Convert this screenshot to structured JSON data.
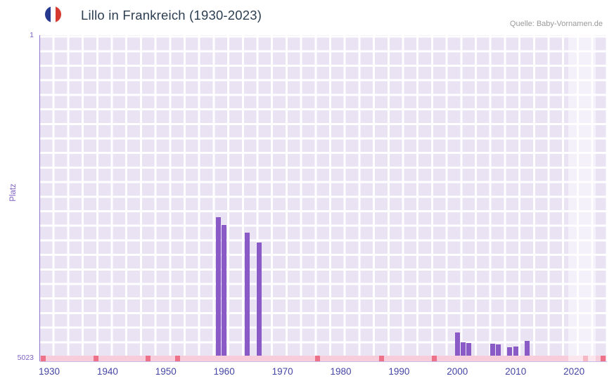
{
  "header": {
    "title": "Lillo in Frankreich (1930-2023)",
    "source": "Quelle: Baby-Vornamen.de",
    "flag_icon": "france-flag-icon"
  },
  "axis": {
    "y_label": "Platz",
    "y_top_tick": "1",
    "y_bottom_tick": "5023",
    "x_ticks": [
      "1930",
      "1940",
      "1950",
      "1960",
      "1970",
      "1980",
      "1990",
      "2000",
      "2010",
      "2020"
    ]
  },
  "chart_data": {
    "type": "bar",
    "title": "Lillo in Frankreich (1930-2023)",
    "xlabel": "",
    "ylabel": "Platz",
    "y_axis": {
      "min": 1,
      "max": 5023,
      "inverted": true,
      "shown_ticks": [
        1,
        5023
      ]
    },
    "x_axis": {
      "min": 1929,
      "max": 2027,
      "shown_ticks": [
        1930,
        1940,
        1950,
        1960,
        1970,
        1980,
        1990,
        2000,
        2010,
        2020
      ]
    },
    "series": [
      {
        "name": "Platz von Lillo",
        "points": [
          {
            "year": 1959,
            "rank": 2850
          },
          {
            "year": 1960,
            "rank": 2975
          },
          {
            "year": 1964,
            "rank": 3095
          },
          {
            "year": 1966,
            "rank": 3250
          },
          {
            "year": 2000,
            "rank": 4660
          },
          {
            "year": 2001,
            "rank": 4815
          },
          {
            "year": 2002,
            "rank": 4820
          },
          {
            "year": 2006,
            "rank": 4835
          },
          {
            "year": 2007,
            "rank": 4845
          },
          {
            "year": 2009,
            "rank": 4895
          },
          {
            "year": 2010,
            "rank": 4885
          },
          {
            "year": 2012,
            "rank": 4795
          }
        ]
      }
    ],
    "no_data_marker_years": [
      1929,
      1938,
      1947,
      1952,
      1976,
      1987,
      1996,
      2022,
      2025
    ],
    "highlight_band": {
      "start_year": 2019,
      "end_year": 2023.7
    },
    "grid": true,
    "legend": "none",
    "colors": {
      "bar": "#8a5ac6",
      "plot_bg": "#e9e3f4",
      "grid_line": "#ffffff",
      "no_data_strip": "#f7ccdb",
      "no_data_marker": "#ec7189",
      "axis_line": "#8d75cc",
      "tick_label": "#4545a5",
      "y_label": "#7e60c2",
      "title": "#2c3e50",
      "source": "#9a9a9a",
      "flag_blue": "#27388f",
      "flag_white": "#ffffff",
      "flag_red": "#d6392f",
      "highlight_band": "rgba(255,255,255,0.5)"
    }
  }
}
